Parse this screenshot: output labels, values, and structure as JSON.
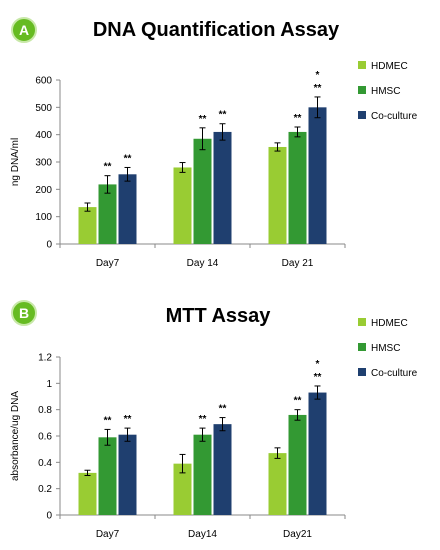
{
  "colors": {
    "HDMEC": "#99cc33",
    "HMSC": "#339933",
    "Co-culture": "#1f3f6f",
    "badge": "#66bb22"
  },
  "chart_data": [
    {
      "panel": "A",
      "type": "bar",
      "title": "DNA Quantification Assay",
      "xlabel": "",
      "ylabel": "ng DNA/ml",
      "ylim": [
        0,
        600
      ],
      "yticks": [
        "0",
        "100",
        "200",
        "300",
        "400",
        "500",
        "600"
      ],
      "categories": [
        "Day7",
        "Day 14",
        "Day 21"
      ],
      "legend_position": "right",
      "series": [
        {
          "name": "HDMEC",
          "values": [
            135,
            280,
            355
          ],
          "errors": [
            15,
            18,
            15
          ],
          "sig": [
            "",
            "",
            ""
          ]
        },
        {
          "name": "HMSC",
          "values": [
            218,
            385,
            410
          ],
          "errors": [
            32,
            40,
            18
          ],
          "sig": [
            "**",
            "**",
            "**"
          ]
        },
        {
          "name": "Co-culture",
          "values": [
            255,
            410,
            500
          ],
          "errors": [
            25,
            30,
            38
          ],
          "sig": [
            "**",
            "**",
            "*\n**"
          ]
        }
      ]
    },
    {
      "panel": "B",
      "type": "bar",
      "title": "MTT Assay",
      "xlabel": "",
      "ylabel": "absorbance/ug DNA",
      "ylim": [
        0,
        1.2
      ],
      "yticks": [
        "0",
        "0.2",
        "0.4",
        "0.6",
        "0.8",
        "1",
        "1.2"
      ],
      "categories": [
        "Day7",
        "Day14",
        "Day21"
      ],
      "legend_position": "right",
      "series": [
        {
          "name": "HDMEC",
          "values": [
            0.32,
            0.39,
            0.47
          ],
          "errors": [
            0.02,
            0.07,
            0.04
          ],
          "sig": [
            "",
            "",
            ""
          ]
        },
        {
          "name": "HMSC",
          "values": [
            0.59,
            0.61,
            0.76
          ],
          "errors": [
            0.06,
            0.05,
            0.04
          ],
          "sig": [
            "**",
            "**",
            "**"
          ]
        },
        {
          "name": "Co-culture",
          "values": [
            0.61,
            0.69,
            0.93
          ],
          "errors": [
            0.05,
            0.05,
            0.05
          ],
          "sig": [
            "**",
            "**",
            "*\n**"
          ]
        }
      ]
    }
  ]
}
